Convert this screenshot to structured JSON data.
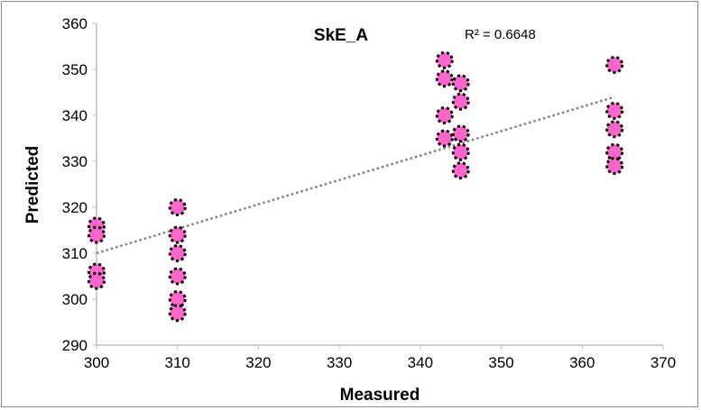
{
  "chart_data": {
    "type": "scatter",
    "title": "SkE_A",
    "xlabel": "Measured",
    "ylabel": "Predicted",
    "xlim": [
      300,
      370
    ],
    "ylim": [
      290,
      360
    ],
    "xticks": [
      "300",
      "310",
      "320",
      "330",
      "340",
      "350",
      "360",
      "370"
    ],
    "yticks": [
      "290",
      "300",
      "310",
      "320",
      "330",
      "340",
      "350",
      "360"
    ],
    "grid": false,
    "annotation": "R² = 0.6648",
    "marker_color": "#ff66cc",
    "trendline": {
      "type": "linear",
      "style": "dotted",
      "color": "#808080",
      "from": [
        300,
        310
      ],
      "to": [
        364,
        344
      ]
    },
    "points": [
      [
        300,
        316
      ],
      [
        300,
        314
      ],
      [
        300,
        306
      ],
      [
        300,
        304
      ],
      [
        310,
        320
      ],
      [
        310,
        314
      ],
      [
        310,
        310
      ],
      [
        310,
        305
      ],
      [
        310,
        300
      ],
      [
        310,
        297
      ],
      [
        343,
        352
      ],
      [
        343,
        348
      ],
      [
        343,
        340
      ],
      [
        343,
        335
      ],
      [
        345,
        347
      ],
      [
        345,
        343
      ],
      [
        345,
        336
      ],
      [
        345,
        332
      ],
      [
        345,
        328
      ],
      [
        364,
        351
      ],
      [
        364,
        341
      ],
      [
        364,
        337
      ],
      [
        364,
        332
      ],
      [
        364,
        329
      ]
    ]
  }
}
